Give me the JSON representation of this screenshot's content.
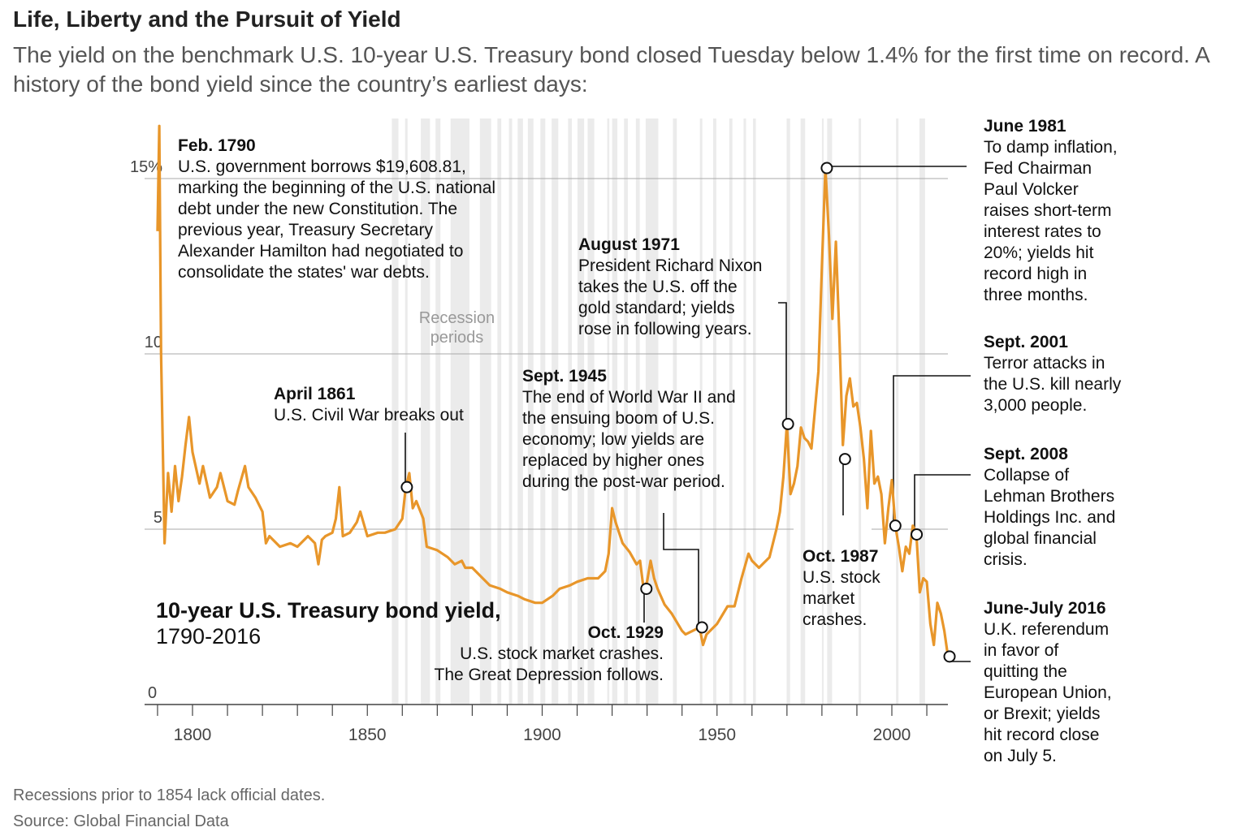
{
  "header": {
    "title": "Life, Liberty and the Pursuit of Yield",
    "subtitle": "The yield on the benchmark U.S. 10-year U.S. Treasury bond closed Tuesday below 1.4% for the first time on record. A history of the bond yield since the country’s earliest days:"
  },
  "series_label": {
    "title": "10-year U.S. Treasury bond yield,",
    "range": "1790-2016"
  },
  "recession_label": "Recession periods",
  "annotations": [
    {
      "date": "Feb. 1790",
      "text": [
        "U.S. government borrows $19,608.81,",
        "marking the beginning of the U.S. national",
        "debt under the new Constitution. The",
        "previous year, Treasury Secretary",
        "Alexander Hamilton had negotiated to",
        "consolidate the states' war debts."
      ]
    },
    {
      "date": "April 1861",
      "text": [
        "U.S. Civil War breaks out"
      ]
    },
    {
      "date": "August 1971",
      "text": [
        "President Richard Nixon",
        "takes the U.S. off the",
        "gold standard; yields",
        "rose in following years."
      ]
    },
    {
      "date": "Sept. 1945",
      "text": [
        "The end of World War II and",
        "the ensuing boom of U.S.",
        "economy; low yields are",
        "replaced by higher ones",
        "during the post-war period."
      ]
    },
    {
      "date": "Oct. 1929",
      "text": [
        "U.S. stock market crashes.",
        "The Great Depression follows."
      ]
    },
    {
      "date": "Oct. 1987",
      "text": [
        "U.S. stock",
        "market",
        "crashes."
      ]
    },
    {
      "date": "June 1981",
      "text": [
        "To damp inflation,",
        "Fed Chairman",
        "Paul Volcker",
        "raises short-term",
        "interest rates to",
        "20%; yields hit",
        "record high in",
        "three months."
      ]
    },
    {
      "date": "Sept. 2001",
      "text": [
        "Terror attacks in",
        "the U.S. kill nearly",
        "3,000 people."
      ]
    },
    {
      "date": "Sept. 2008",
      "text": [
        "Collapse of",
        "Lehman Brothers",
        "Holdings Inc. and",
        "global financial",
        "crisis."
      ]
    },
    {
      "date": "June-July 2016",
      "text": [
        "U.K. referendum",
        "in favor of",
        "quitting the",
        "European Union,",
        "or Brexit; yields",
        "hit record close",
        "on July 5."
      ]
    }
  ],
  "footer": {
    "note": "Recessions prior to 1854 lack official dates.",
    "source": "Source: Global Financial Data"
  },
  "chart_data": {
    "type": "line",
    "title": "10-year U.S. Treasury bond yield, 1790-2016",
    "xlim": [
      1790,
      2016
    ],
    "ylim": [
      0,
      16.5
    ],
    "x_ticks": [
      1800,
      1850,
      1900,
      1950,
      2000
    ],
    "x_minor_tick_step": 10,
    "y_ticks": [
      0,
      5,
      10,
      15
    ],
    "y_tick_labels": [
      "0",
      "5",
      "10",
      "15%"
    ],
    "grid": true,
    "line_color": "#e8962a",
    "recession_color": "#ebebeb",
    "recessions": [
      [
        1857,
        1858.9
      ],
      [
        1860.8,
        1861.5
      ],
      [
        1865.3,
        1867.9
      ],
      [
        1869.5,
        1870.9
      ],
      [
        1873.8,
        1879.2
      ],
      [
        1882.2,
        1885.4
      ],
      [
        1887.2,
        1888.3
      ],
      [
        1890.5,
        1891.4
      ],
      [
        1893.0,
        1894.5
      ],
      [
        1895.9,
        1897.5
      ],
      [
        1899.5,
        1900.9
      ],
      [
        1902.7,
        1904.6
      ],
      [
        1907.4,
        1908.5
      ],
      [
        1910.1,
        1912.0
      ],
      [
        1913.0,
        1914.9
      ],
      [
        1918.6,
        1919.2
      ],
      [
        1920.0,
        1921.5
      ],
      [
        1923.4,
        1924.5
      ],
      [
        1926.8,
        1927.9
      ],
      [
        1929.6,
        1933.2
      ],
      [
        1937.4,
        1938.5
      ],
      [
        1945.1,
        1945.8
      ],
      [
        1948.9,
        1949.8
      ],
      [
        1953.5,
        1954.4
      ],
      [
        1957.6,
        1958.3
      ],
      [
        1960.3,
        1961.1
      ],
      [
        1969.9,
        1970.9
      ],
      [
        1973.9,
        1975.2
      ],
      [
        1980.0,
        1980.5
      ],
      [
        1981.5,
        1982.9
      ],
      [
        1990.5,
        1991.2
      ],
      [
        2001.2,
        2001.9
      ],
      [
        2007.9,
        2009.5
      ]
    ],
    "x": [
      1790,
      1790.5,
      1791,
      1792,
      1793,
      1794,
      1795,
      1796,
      1797,
      1798,
      1799,
      1800,
      1802,
      1803,
      1805,
      1807,
      1808,
      1810,
      1812,
      1813,
      1815,
      1816,
      1818,
      1820,
      1821,
      1822,
      1825,
      1828,
      1830,
      1833,
      1835,
      1836,
      1837,
      1838,
      1840,
      1841,
      1842,
      1843,
      1845,
      1847,
      1848,
      1850,
      1853,
      1855,
      1858,
      1860,
      1861,
      1862,
      1863,
      1864,
      1866,
      1867,
      1870,
      1873,
      1875,
      1877,
      1878,
      1880,
      1883,
      1885,
      1888,
      1890,
      1893,
      1895,
      1898,
      1900,
      1903,
      1905,
      1908,
      1910,
      1913,
      1916,
      1918,
      1919,
      1920,
      1921,
      1923,
      1925,
      1927,
      1928,
      1929,
      1930,
      1931,
      1932,
      1933,
      1935,
      1937,
      1940,
      1941,
      1943,
      1945,
      1946,
      1947,
      1950,
      1953,
      1955,
      1957,
      1959,
      1960,
      1962,
      1965,
      1967,
      1968,
      1969,
      1970,
      1971,
      1972,
      1973,
      1974,
      1975,
      1976,
      1977,
      1978,
      1979,
      1980,
      1981,
      1982,
      1983,
      1984,
      1985,
      1986,
      1987,
      1988,
      1989,
      1990,
      1991,
      1992,
      1993,
      1994,
      1995,
      1996,
      1997,
      1998,
      1999,
      2000,
      2001,
      2002,
      2003,
      2004,
      2005,
      2006,
      2007,
      2008,
      2009,
      2010,
      2011,
      2012,
      2013,
      2014,
      2015,
      2016
    ],
    "y": [
      13.5,
      16.5,
      10.0,
      4.6,
      6.6,
      5.5,
      6.8,
      5.8,
      6.5,
      7.4,
      8.2,
      7.2,
      6.3,
      6.8,
      5.9,
      6.2,
      6.6,
      5.8,
      5.7,
      6.1,
      6.8,
      6.2,
      5.9,
      5.5,
      4.6,
      4.8,
      4.5,
      4.6,
      4.5,
      4.8,
      4.6,
      4.0,
      4.7,
      4.8,
      4.9,
      5.3,
      6.2,
      4.8,
      4.9,
      5.2,
      5.5,
      4.8,
      4.9,
      4.9,
      5.0,
      5.3,
      6.2,
      6.6,
      5.6,
      5.8,
      5.3,
      4.5,
      4.4,
      4.2,
      4.0,
      4.1,
      3.9,
      3.9,
      3.6,
      3.4,
      3.3,
      3.2,
      3.1,
      3.0,
      2.9,
      2.9,
      3.1,
      3.3,
      3.4,
      3.5,
      3.6,
      3.6,
      3.8,
      4.3,
      5.6,
      5.2,
      4.6,
      4.35,
      4.0,
      4.1,
      3.3,
      3.5,
      4.1,
      3.6,
      3.3,
      2.85,
      2.6,
      2.1,
      2.0,
      2.1,
      2.2,
      1.7,
      2.0,
      2.3,
      2.8,
      2.8,
      3.6,
      4.3,
      4.1,
      3.9,
      4.2,
      5.0,
      5.5,
      6.5,
      8.0,
      6.0,
      6.3,
      6.8,
      7.9,
      7.6,
      7.5,
      7.3,
      8.4,
      9.5,
      12.5,
      15.3,
      13.4,
      11.0,
      13.2,
      10.5,
      7.4,
      8.8,
      9.3,
      8.5,
      8.6,
      7.9,
      7.0,
      5.6,
      7.8,
      6.3,
      6.5,
      6.0,
      4.6,
      5.6,
      6.4,
      5.1,
      4.5,
      3.8,
      4.5,
      4.3,
      5.1,
      4.9,
      3.2,
      3.6,
      3.5,
      2.3,
      1.7,
      2.9,
      2.6,
      2.1,
      1.4
    ],
    "markers": [
      {
        "label": "April 1861",
        "x": 1861.3,
        "y": 6.2
      },
      {
        "label": "Oct. 1929",
        "x": 1929.8,
        "y": 3.3
      },
      {
        "label": "Sept. 1945",
        "x": 1945.7,
        "y": 2.2
      },
      {
        "label": "August 1971",
        "x": 1970.3,
        "y": 8.0
      },
      {
        "label": "June 1981",
        "x": 1981.4,
        "y": 15.3
      },
      {
        "label": "Oct. 1987",
        "x": 1986.6,
        "y": 7.0
      },
      {
        "label": "Sept. 2001",
        "x": 2001.0,
        "y": 5.1
      },
      {
        "label": "Sept. 2008",
        "x": 2007.1,
        "y": 4.85
      },
      {
        "label": "June-July 2016",
        "x": 2016.5,
        "y": 1.37
      }
    ]
  }
}
